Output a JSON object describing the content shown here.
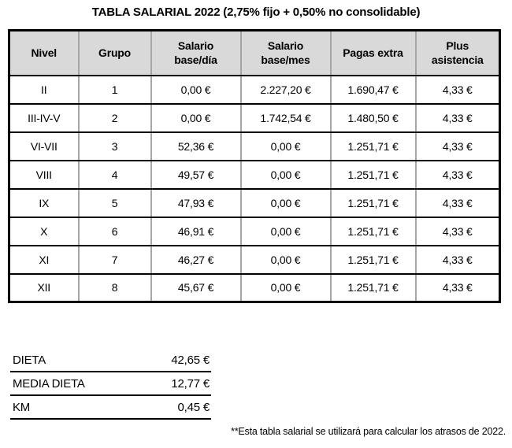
{
  "title": "TABLA SALARIAL 2022 (2,75% fijo + 0,50% no consolidable)",
  "salary_table": {
    "headers": [
      "Nivel",
      "Grupo",
      "Salario base/día",
      "Salario base/mes",
      "Pagas extra",
      "Plus asistencia"
    ],
    "rows": [
      [
        "II",
        "1",
        "0,00 €",
        "2.227,20 €",
        "1.690,47 €",
        "4,33 €"
      ],
      [
        "III-IV-V",
        "2",
        "0,00 €",
        "1.742,54 €",
        "1.480,50 €",
        "4,33 €"
      ],
      [
        "VI-VII",
        "3",
        "52,36 €",
        "0,00 €",
        "1.251,71 €",
        "4,33 €"
      ],
      [
        "VIII",
        "4",
        "49,57 €",
        "0,00 €",
        "1.251,71 €",
        "4,33 €"
      ],
      [
        "IX",
        "5",
        "47,93 €",
        "0,00 €",
        "1.251,71 €",
        "4,33 €"
      ],
      [
        "X",
        "6",
        "46,91 €",
        "0,00 €",
        "1.251,71 €",
        "4,33 €"
      ],
      [
        "XI",
        "7",
        "46,27 €",
        "0,00 €",
        "1.251,71 €",
        "4,33 €"
      ],
      [
        "XII",
        "8",
        "45,67 €",
        "0,00 €",
        "1.251,71 €",
        "4,33 €"
      ]
    ]
  },
  "allowances": {
    "rows": [
      {
        "label": "DIETA",
        "value": "42,65 €"
      },
      {
        "label": "MEDIA DIETA",
        "value": "12,77 €"
      },
      {
        "label": "KM",
        "value": "0,45 €"
      }
    ]
  },
  "footnote": "**Esta tabla salarial se utilizará para calcular los atrasos de 2022.",
  "colors": {
    "header_bg": "#d9d9d9",
    "horizontal_border": "#000000",
    "vertical_border": "#a6a6a6"
  }
}
